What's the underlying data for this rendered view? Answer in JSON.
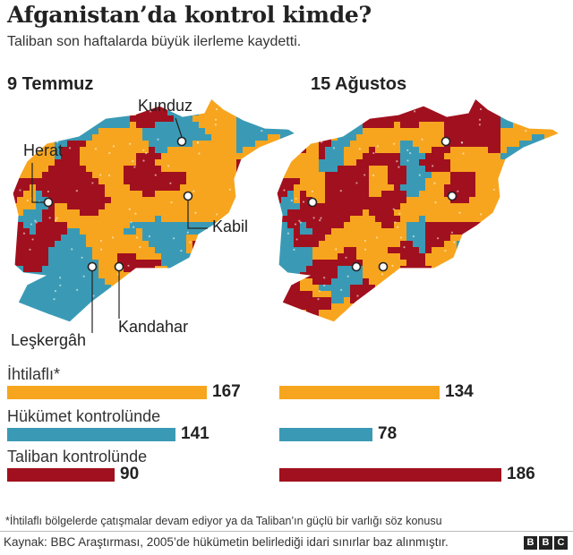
{
  "header": {
    "title": "Afganistan’da kontrol kimde?",
    "subtitle": "Taliban son haftalarda büyük ilerleme kaydetti."
  },
  "maps": [
    {
      "date": "9 Temmuz",
      "cities": [
        "Kunduz",
        "Herat",
        "Kabil",
        "Leşkergâh",
        "Kandahar"
      ]
    },
    {
      "date": "15 Ağustos",
      "cities": []
    }
  ],
  "colors": {
    "contested": "#f7a51e",
    "government": "#3a9ab5",
    "taliban": "#a1101e"
  },
  "chart_data": {
    "type": "bar",
    "categories": [
      "İhtilaflı*",
      "Hükümet kontrolünde",
      "Taliban kontrolünde"
    ],
    "series": [
      {
        "name": "9 Temmuz",
        "values": [
          167,
          141,
          90
        ]
      },
      {
        "name": "15 Ağustos",
        "values": [
          134,
          78,
          186
        ]
      }
    ]
  },
  "legend": {
    "contested": "İhtilaflı*",
    "government": "Hükümet kontrolünde",
    "taliban": "Taliban kontrolünde"
  },
  "footnote": "*İhtilaflı bölgelerde çatışmalar devam ediyor ya da Taliban’ın güçlü bir varlığı söz konusu",
  "source": "Kaynak: BBC Araştırması, 2005’de hükümetin belirlediği idari sınırlar baz alınmıştır.",
  "brand": [
    "B",
    "B",
    "C"
  ]
}
